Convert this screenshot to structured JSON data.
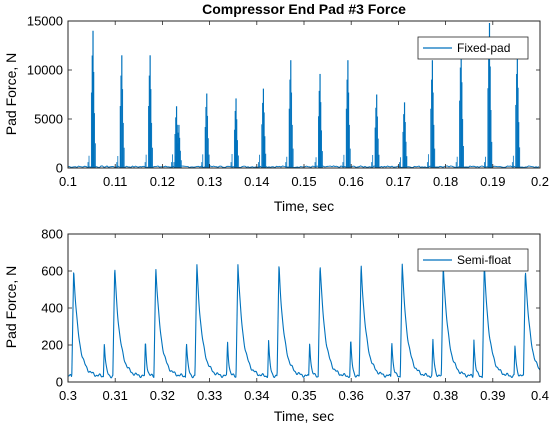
{
  "chart_data": [
    {
      "type": "line",
      "title": "Compressor End Pad #3 Force",
      "xlabel": "Time, sec",
      "ylabel": "Pad Force, N",
      "xlim": [
        0.1,
        0.2
      ],
      "ylim": [
        0,
        15000
      ],
      "xticks": [
        "0.1",
        "0.11",
        "0.12",
        "0.13",
        "0.14",
        "0.15",
        "0.16",
        "0.17",
        "0.18",
        "0.19",
        "0.2"
      ],
      "yticks": [
        "0",
        "5000",
        "10000",
        "15000"
      ],
      "grid": false,
      "legend_position": "top-right",
      "series": [
        {
          "name": "Fixed-pad",
          "color": "#0072BD",
          "pulses": [
            {
              "x": 0.1053,
              "y": 14000
            },
            {
              "x": 0.1114,
              "y": 11500
            },
            {
              "x": 0.1174,
              "y": 11500
            },
            {
              "x": 0.123,
              "y": 6300
            },
            {
              "x": 0.1235,
              "y": 4400
            },
            {
              "x": 0.1294,
              "y": 7600
            },
            {
              "x": 0.1356,
              "y": 7100
            },
            {
              "x": 0.1414,
              "y": 8100
            },
            {
              "x": 0.1472,
              "y": 11000
            },
            {
              "x": 0.1534,
              "y": 9600
            },
            {
              "x": 0.1593,
              "y": 11000
            },
            {
              "x": 0.1654,
              "y": 7500
            },
            {
              "x": 0.1713,
              "y": 6700
            },
            {
              "x": 0.1772,
              "y": 11000
            },
            {
              "x": 0.1833,
              "y": 12500
            },
            {
              "x": 0.1893,
              "y": 14800
            },
            {
              "x": 0.1952,
              "y": 11700
            }
          ]
        }
      ]
    },
    {
      "type": "line",
      "title": "",
      "xlabel": "Time, sec",
      "ylabel": "Pad Force, N",
      "xlim": [
        0.3,
        0.4
      ],
      "ylim": [
        0,
        800
      ],
      "xticks": [
        "0.3",
        "0.31",
        "0.32",
        "0.33",
        "0.34",
        "0.35",
        "0.36",
        "0.37",
        "0.38",
        "0.39",
        "0.4"
      ],
      "yticks": [
        "0",
        "200",
        "400",
        "600",
        "800"
      ],
      "grid": false,
      "legend_position": "top-right",
      "series": [
        {
          "name": "Semi-float",
          "color": "#0072BD",
          "baseline": 30,
          "pulses": [
            {
              "x": 0.3012,
              "y": 610,
              "minor_x": 0.299,
              "minor_y": 180
            },
            {
              "x": 0.3099,
              "y": 620,
              "minor_x": 0.3077,
              "minor_y": 220
            },
            {
              "x": 0.3186,
              "y": 625,
              "minor_x": 0.3164,
              "minor_y": 220
            },
            {
              "x": 0.3273,
              "y": 635,
              "minor_x": 0.3251,
              "minor_y": 220
            },
            {
              "x": 0.336,
              "y": 640,
              "minor_x": 0.3338,
              "minor_y": 220
            },
            {
              "x": 0.3447,
              "y": 635,
              "minor_x": 0.3425,
              "minor_y": 220
            },
            {
              "x": 0.3534,
              "y": 640,
              "minor_x": 0.3512,
              "minor_y": 220
            },
            {
              "x": 0.3621,
              "y": 640,
              "minor_x": 0.3599,
              "minor_y": 230
            },
            {
              "x": 0.3708,
              "y": 640,
              "minor_x": 0.3686,
              "minor_y": 230
            },
            {
              "x": 0.3795,
              "y": 640,
              "minor_x": 0.3773,
              "minor_y": 230
            },
            {
              "x": 0.3882,
              "y": 635,
              "minor_x": 0.386,
              "minor_y": 230
            },
            {
              "x": 0.3969,
              "y": 615,
              "minor_x": 0.3947,
              "minor_y": 200
            }
          ]
        }
      ]
    }
  ]
}
